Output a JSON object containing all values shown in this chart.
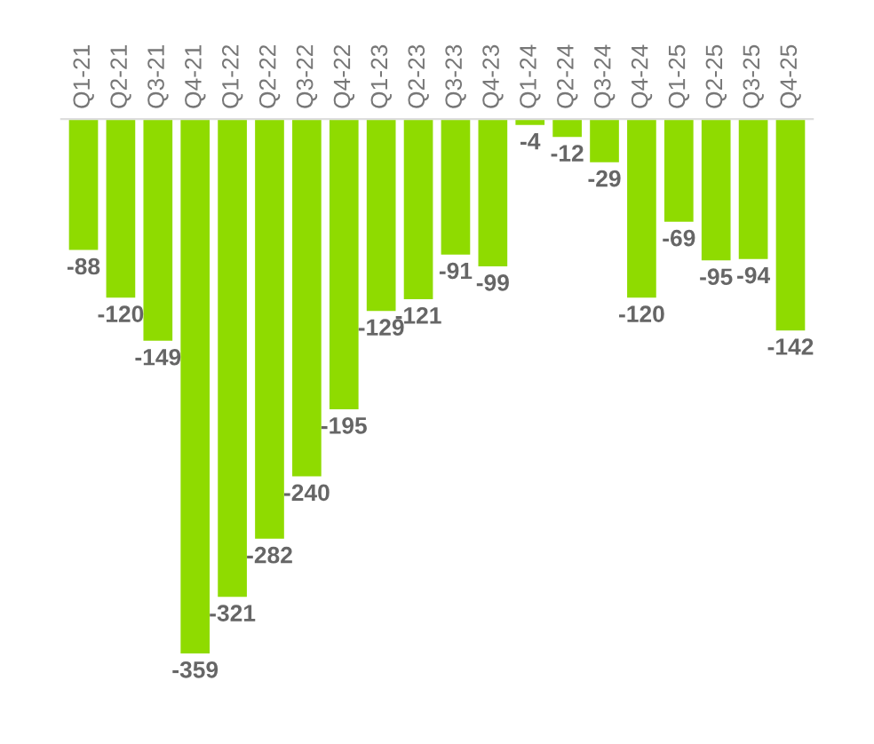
{
  "chart_data": {
    "type": "bar",
    "categories": [
      "Q1-21",
      "Q2-21",
      "Q3-21",
      "Q4-21",
      "Q1-22",
      "Q2-22",
      "Q3-22",
      "Q4-22",
      "Q1-23",
      "Q2-23",
      "Q3-23",
      "Q4-23",
      "Q1-24",
      "Q2-24",
      "Q3-24",
      "Q4-24",
      "Q1-25",
      "Q2-25",
      "Q3-25",
      "Q4-25"
    ],
    "values": [
      -88,
      -120,
      -149,
      -359,
      -321,
      -282,
      -240,
      -195,
      -129,
      -121,
      -91,
      -99,
      -4,
      -12,
      -29,
      -120,
      -69,
      -95,
      -94,
      -142
    ],
    "color": "#8fdb00",
    "data_labels": true,
    "grid": false,
    "legend": false
  }
}
